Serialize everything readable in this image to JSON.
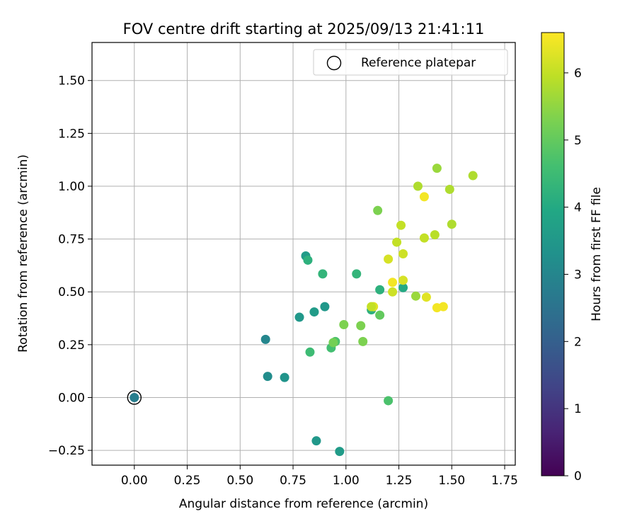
{
  "chart_data": {
    "type": "scatter",
    "title": "FOV centre drift starting at 2025/09/13 21:41:11",
    "xlabel": "Angular distance from reference (arcmin)",
    "ylabel": "Rotation from reference (arcmin)",
    "xlim": [
      -0.2,
      1.8
    ],
    "ylim": [
      -0.32,
      1.68
    ],
    "xticks": [
      0.0,
      0.25,
      0.5,
      0.75,
      1.0,
      1.25,
      1.5,
      1.75
    ],
    "xtick_labels": [
      "0.00",
      "0.25",
      "0.50",
      "0.75",
      "1.00",
      "1.25",
      "1.50",
      "1.75"
    ],
    "yticks": [
      -0.25,
      0.0,
      0.25,
      0.5,
      0.75,
      1.0,
      1.25,
      1.5
    ],
    "ytick_labels": [
      "−0.25",
      "0.00",
      "0.25",
      "0.50",
      "0.75",
      "1.00",
      "1.25",
      "1.50"
    ],
    "grid": true,
    "legend": {
      "location": "top-right",
      "entries": [
        "Reference platepar"
      ]
    },
    "reference_point": {
      "x": 0.0,
      "y": 0.0
    },
    "colorbar": {
      "label": "Hours from first FF file",
      "colormap": "viridis",
      "range": [
        0,
        6.6
      ],
      "ticks": [
        0,
        1,
        2,
        3,
        4,
        5,
        6
      ],
      "tick_labels": [
        "0",
        "1",
        "2",
        "3",
        "4",
        "5",
        "6"
      ]
    },
    "points": [
      {
        "x": 0.0,
        "y": 0.0,
        "c": 2.8
      },
      {
        "x": 0.62,
        "y": 0.275,
        "c": 3.0
      },
      {
        "x": 0.63,
        "y": 0.1,
        "c": 3.2
      },
      {
        "x": 0.71,
        "y": 0.095,
        "c": 3.4
      },
      {
        "x": 0.86,
        "y": -0.205,
        "c": 3.5
      },
      {
        "x": 0.97,
        "y": -0.255,
        "c": 3.6
      },
      {
        "x": 0.78,
        "y": 0.38,
        "c": 3.5
      },
      {
        "x": 0.85,
        "y": 0.405,
        "c": 3.6
      },
      {
        "x": 0.9,
        "y": 0.43,
        "c": 3.5
      },
      {
        "x": 0.81,
        "y": 0.67,
        "c": 3.6
      },
      {
        "x": 0.82,
        "y": 0.65,
        "c": 4.2
      },
      {
        "x": 0.89,
        "y": 0.585,
        "c": 4.3
      },
      {
        "x": 1.05,
        "y": 0.585,
        "c": 4.3
      },
      {
        "x": 1.16,
        "y": 0.51,
        "c": 4.2
      },
      {
        "x": 1.12,
        "y": 0.415,
        "c": 4.2
      },
      {
        "x": 1.27,
        "y": 0.52,
        "c": 4.0
      },
      {
        "x": 0.83,
        "y": 0.215,
        "c": 4.5
      },
      {
        "x": 0.93,
        "y": 0.235,
        "c": 4.6
      },
      {
        "x": 0.95,
        "y": 0.265,
        "c": 4.7
      },
      {
        "x": 1.16,
        "y": 0.39,
        "c": 5.0
      },
      {
        "x": 1.2,
        "y": -0.015,
        "c": 4.7
      },
      {
        "x": 0.94,
        "y": 0.26,
        "c": 5.2
      },
      {
        "x": 0.99,
        "y": 0.345,
        "c": 5.3
      },
      {
        "x": 1.07,
        "y": 0.34,
        "c": 5.3
      },
      {
        "x": 1.08,
        "y": 0.265,
        "c": 5.3
      },
      {
        "x": 1.15,
        "y": 0.885,
        "c": 5.3
      },
      {
        "x": 1.33,
        "y": 0.48,
        "c": 5.6
      },
      {
        "x": 1.34,
        "y": 1.0,
        "c": 5.8
      },
      {
        "x": 1.43,
        "y": 1.085,
        "c": 5.6
      },
      {
        "x": 1.49,
        "y": 0.985,
        "c": 5.8
      },
      {
        "x": 1.6,
        "y": 1.05,
        "c": 5.8
      },
      {
        "x": 1.5,
        "y": 0.82,
        "c": 5.8
      },
      {
        "x": 1.42,
        "y": 0.77,
        "c": 5.9
      },
      {
        "x": 1.37,
        "y": 0.755,
        "c": 6.0
      },
      {
        "x": 1.26,
        "y": 0.815,
        "c": 6.0
      },
      {
        "x": 1.24,
        "y": 0.735,
        "c": 6.0
      },
      {
        "x": 1.27,
        "y": 0.68,
        "c": 6.1
      },
      {
        "x": 1.2,
        "y": 0.655,
        "c": 6.2
      },
      {
        "x": 1.27,
        "y": 0.555,
        "c": 6.2
      },
      {
        "x": 1.22,
        "y": 0.545,
        "c": 6.5
      },
      {
        "x": 1.22,
        "y": 0.5,
        "c": 6.1
      },
      {
        "x": 1.13,
        "y": 0.43,
        "c": 6.3
      },
      {
        "x": 1.12,
        "y": 0.43,
        "c": 6.0
      },
      {
        "x": 1.37,
        "y": 0.95,
        "c": 6.5
      },
      {
        "x": 1.38,
        "y": 0.475,
        "c": 6.3
      },
      {
        "x": 1.43,
        "y": 0.425,
        "c": 6.5
      },
      {
        "x": 1.46,
        "y": 0.43,
        "c": 6.5
      }
    ]
  }
}
